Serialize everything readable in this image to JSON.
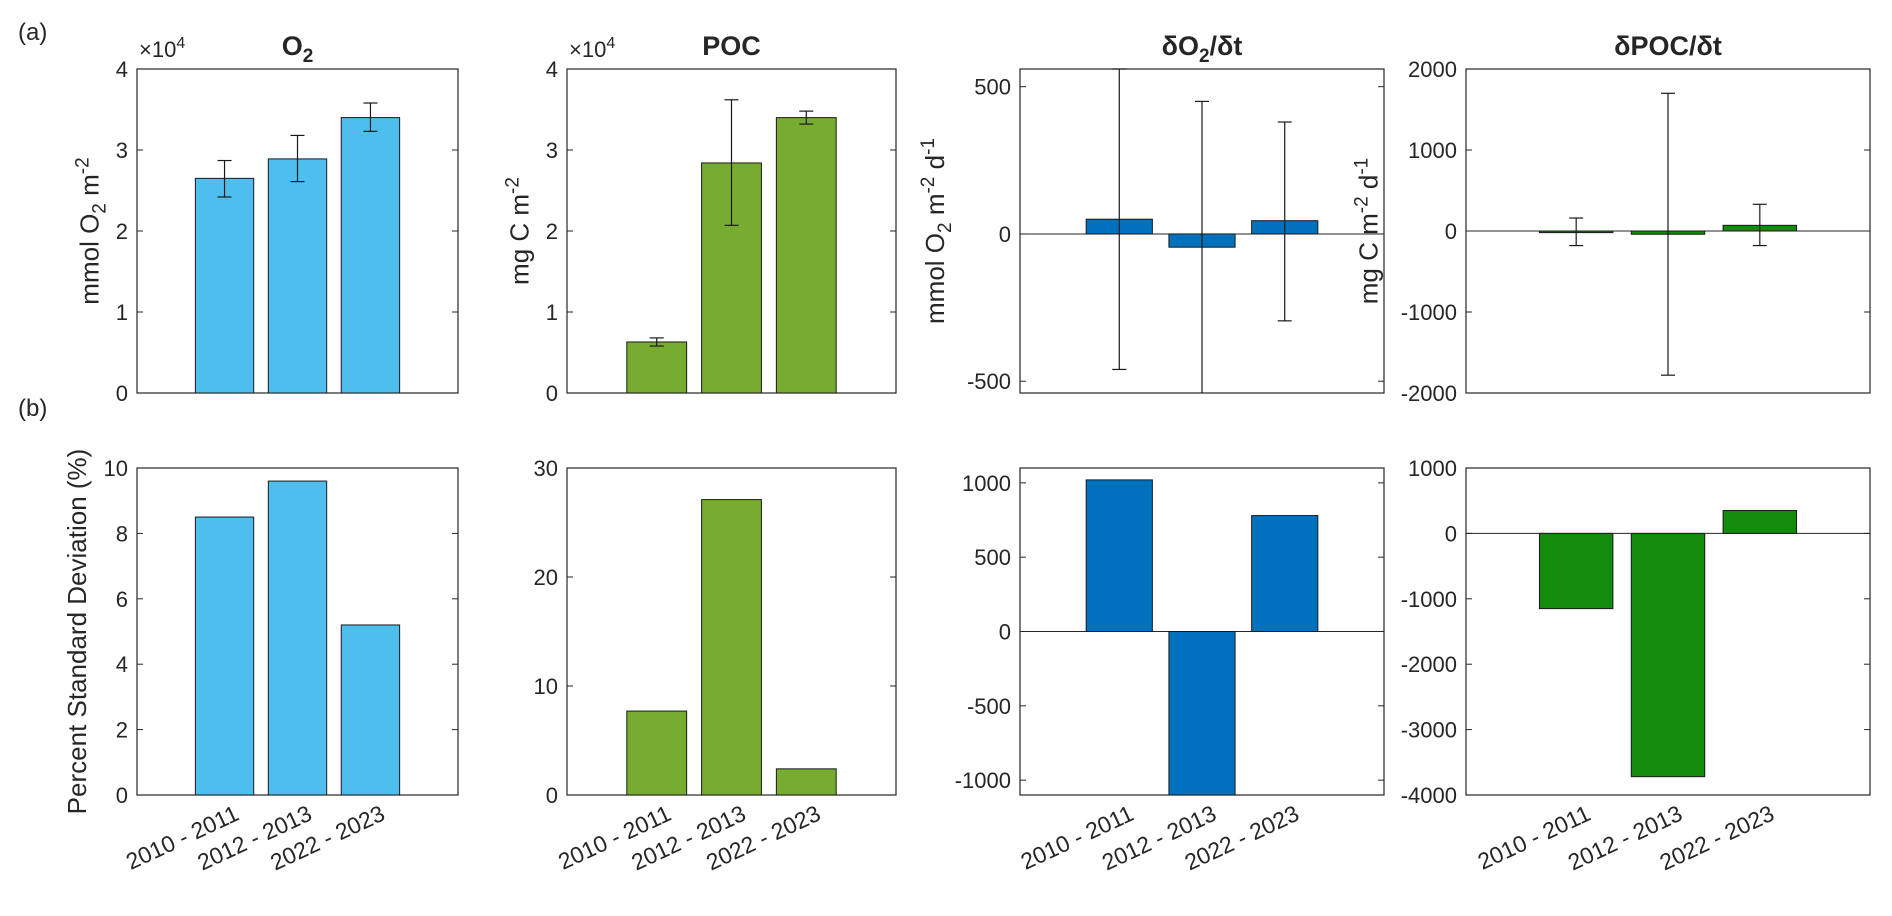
{
  "figure": {
    "panel_labels": [
      "(a)",
      "(b)"
    ],
    "multiplier": "×10",
    "multiplier_exp": "4"
  },
  "chart_data": [
    {
      "id": "o2",
      "type": "bar",
      "row": "a",
      "col": 0,
      "title": {
        "base": "O",
        "sub": "2",
        "rest": ""
      },
      "ylabel": {
        "parts": [
          [
            "mmol O",
            ""
          ],
          [
            "2",
            "sub"
          ],
          [
            " m",
            ""
          ],
          [
            "-2",
            "sup"
          ]
        ]
      },
      "categories": [
        "2010 - 2011",
        "2012 - 2013",
        "2022 - 2023"
      ],
      "values": [
        26500,
        28900,
        34000
      ],
      "error_bars": [
        [
          24200,
          28700
        ],
        [
          26100,
          31800
        ],
        [
          32300,
          35800
        ]
      ],
      "ylim": [
        0,
        40000
      ],
      "ticks": [
        0,
        10000,
        20000,
        30000,
        40000
      ],
      "tick_labels": [
        "0",
        "1",
        "2",
        "3",
        "4"
      ],
      "multiplier": true,
      "color": "#4dbeee"
    },
    {
      "id": "poc",
      "type": "bar",
      "row": "a",
      "col": 1,
      "title": {
        "base": "POC",
        "sub": "",
        "rest": ""
      },
      "ylabel": {
        "parts": [
          [
            "mg C m",
            ""
          ],
          [
            "-2",
            "sup"
          ]
        ]
      },
      "categories": [
        "2010 - 2011",
        "2012 - 2013",
        "2022 - 2023"
      ],
      "values": [
        6300,
        28400,
        34000
      ],
      "error_bars": [
        [
          5800,
          6800
        ],
        [
          20700,
          36200
        ],
        [
          33200,
          34800
        ]
      ],
      "ylim": [
        0,
        40000
      ],
      "ticks": [
        0,
        10000,
        20000,
        30000,
        40000
      ],
      "tick_labels": [
        "0",
        "1",
        "2",
        "3",
        "4"
      ],
      "multiplier": true,
      "color": "#77ac30"
    },
    {
      "id": "do2dt",
      "type": "bar",
      "row": "a",
      "col": 2,
      "title": {
        "base": "δO",
        "sub": "2",
        "rest": "/δt"
      },
      "ylabel": {
        "parts": [
          [
            "mmol O",
            ""
          ],
          [
            "2",
            "sub"
          ],
          [
            " m",
            ""
          ],
          [
            "-2",
            "sup"
          ],
          [
            " d",
            ""
          ],
          [
            "-1",
            "sup"
          ]
        ]
      },
      "categories": [
        "2010 - 2011",
        "2012 - 2013",
        "2022 - 2023"
      ],
      "values": [
        50,
        -45,
        45
      ],
      "error_bars": [
        [
          -460,
          560
        ],
        [
          -545,
          450
        ],
        [
          -295,
          380
        ]
      ],
      "ylim": [
        -540,
        560
      ],
      "ticks": [
        -500,
        0,
        500
      ],
      "tick_labels": [
        "-500",
        "0",
        "500"
      ],
      "multiplier": false,
      "color": "#0072bd"
    },
    {
      "id": "dpocdt",
      "type": "bar",
      "row": "a",
      "col": 3,
      "title": {
        "base": "δPOC/δt",
        "sub": "",
        "rest": ""
      },
      "ylabel": {
        "parts": [
          [
            "mg C m",
            ""
          ],
          [
            "-2",
            "sup"
          ],
          [
            " d",
            ""
          ],
          [
            "-1",
            "sup"
          ]
        ]
      },
      "categories": [
        "2010 - 2011",
        "2012 - 2013",
        "2022 - 2023"
      ],
      "values": [
        -20,
        -40,
        70
      ],
      "error_bars": [
        [
          -180,
          160
        ],
        [
          -1780,
          1700
        ],
        [
          -180,
          330
        ]
      ],
      "ylim": [
        -2000,
        2000
      ],
      "ticks": [
        -2000,
        -1000,
        0,
        1000,
        2000
      ],
      "tick_labels": [
        "-2000",
        "-1000",
        "0",
        "1000",
        "2000"
      ],
      "multiplier": false,
      "color": "#138c0b"
    },
    {
      "id": "pct_o2",
      "type": "bar",
      "row": "b",
      "col": 0,
      "ylabel": {
        "parts": [
          [
            "Percent Standard Deviation (%)",
            ""
          ]
        ]
      },
      "categories": [
        "2010 - 2011",
        "2012 - 2013",
        "2022 - 2023"
      ],
      "values": [
        8.5,
        9.6,
        5.2
      ],
      "ylim": [
        0,
        10
      ],
      "ticks": [
        0,
        2,
        4,
        6,
        8,
        10
      ],
      "tick_labels": [
        "0",
        "2",
        "4",
        "6",
        "8",
        "10"
      ],
      "color": "#4dbeee"
    },
    {
      "id": "pct_poc",
      "type": "bar",
      "row": "b",
      "col": 1,
      "categories": [
        "2010 - 2011",
        "2012 - 2013",
        "2022 - 2023"
      ],
      "values": [
        7.7,
        27.1,
        2.4
      ],
      "ylim": [
        0,
        30
      ],
      "ticks": [
        0,
        10,
        20,
        30
      ],
      "tick_labels": [
        "0",
        "10",
        "20",
        "30"
      ],
      "color": "#77ac30"
    },
    {
      "id": "pct_do2dt",
      "type": "bar",
      "row": "b",
      "col": 2,
      "categories": [
        "2010 - 2011",
        "2012 - 2013",
        "2022 - 2023"
      ],
      "values": [
        1020,
        -1100,
        780
      ],
      "ylim": [
        -1100,
        1100
      ],
      "ticks": [
        -1000,
        -500,
        0,
        500,
        1000
      ],
      "tick_labels": [
        "-1000",
        "-500",
        "0",
        "500",
        "1000"
      ],
      "color": "#0072bd"
    },
    {
      "id": "pct_dpocdt",
      "type": "bar",
      "row": "b",
      "col": 3,
      "categories": [
        "2010 - 2011",
        "2012 - 2013",
        "2022 - 2023"
      ],
      "values": [
        -1150,
        -3720,
        350
      ],
      "ylim": [
        -4000,
        1000
      ],
      "ticks": [
        -4000,
        -3000,
        -2000,
        -1000,
        0,
        1000
      ],
      "tick_labels": [
        "-4000",
        "-3000",
        "-2000",
        "-1000",
        "0",
        "1000"
      ],
      "color": "#138c0b"
    }
  ]
}
